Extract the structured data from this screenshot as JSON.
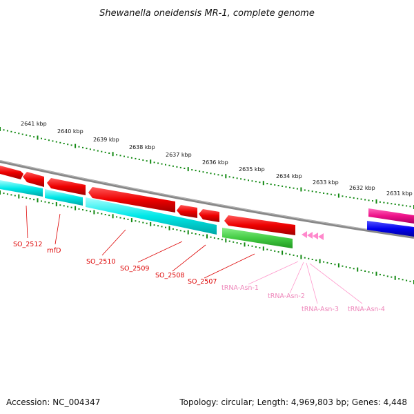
{
  "title": "Shewanella oneidensis MR-1, complete genome",
  "accession": "Accession: NC_004347",
  "summary": "Topology: circular; Length: 4,969,803 bp; Genes: 4,448",
  "scale_labels": [
    "2641 kbp",
    "2640 kbp",
    "2639 kbp",
    "2638 kbp",
    "2637 kbp",
    "2636 kbp",
    "2635 kbp",
    "2634 kbp",
    "2633 kbp",
    "2632 kbp",
    "2631 kbp"
  ],
  "genes": [
    {
      "name": "SO_2512",
      "color": "#dd0000"
    },
    {
      "name": "rnfD",
      "color": "#dd0000"
    },
    {
      "name": "SO_2510",
      "color": "#dd0000"
    },
    {
      "name": "SO_2509",
      "color": "#dd0000"
    },
    {
      "name": "SO_2508",
      "color": "#dd0000"
    },
    {
      "name": "SO_2507",
      "color": "#dd0000"
    },
    {
      "name": "tRNA-Asn-1",
      "color": "#ee88bb"
    },
    {
      "name": "tRNA-Asn-2",
      "color": "#ee88bb"
    },
    {
      "name": "tRNA-Asn-3",
      "color": "#ee88bb"
    },
    {
      "name": "tRNA-Asn-4",
      "color": "#ee88bb"
    }
  ],
  "colors": {
    "forward_cds": "#ee0000",
    "reverse_cds": "#00e0e0",
    "rna": "#44cc44",
    "trna": "#ff88cc",
    "backbone": "#888888",
    "tick": "#118811",
    "magenta_feature": "#ee1188",
    "blue_feature": "#0000ee"
  }
}
